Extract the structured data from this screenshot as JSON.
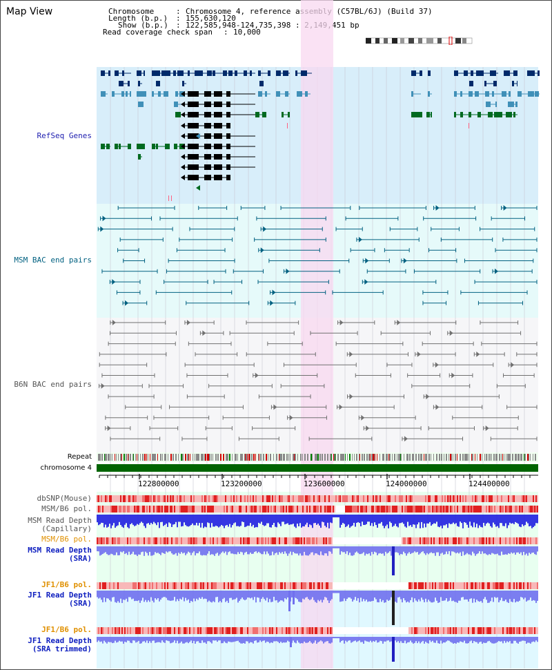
{
  "page": {
    "title": "Map View"
  },
  "header": {
    "chromosome_label": "Chromosome",
    "chromosome_value": "Chromosome 4, reference assembly (C57BL/6J) (Build 37)",
    "length_label": "Length (b.p.)",
    "length_value": "155,630,120",
    "show_label": "Show (b.p.)",
    "show_value": "122,585,948-124,735,398 : 2,149,451 bp",
    "span_label": "Read coverage check span",
    "span_value": "10,000"
  },
  "tracks": {
    "refseq": "RefSeq Genes",
    "msm_bac": "MSM BAC end pairs",
    "b6n_bac": "B6N BAC end pairs",
    "repeat": "Repeat",
    "chromosome": "chromosome 4",
    "dbsnp": "dbSNP(Mouse)",
    "msm_b6_pol": "MSM/B6 pol.",
    "msm_read_depth_cap": "MSM Read Depth\n(Capillary)",
    "msm_b6_pol2": "MSM/B6 pol.",
    "msm_read_depth_sra": "MSM Read Depth\n(SRA)",
    "jf1_b6_pol": "JF1/B6 pol.",
    "jf1_read_depth_sra": "JF1 Read Depth\n(SRA)",
    "jf1_b6_pol2": "JF1/B6 pol.",
    "jf1_read_depth_trim": "JF1 Read Depth\n(SRA trimmed)"
  },
  "axis": {
    "ticks": [
      "122800000",
      "123200000",
      "123600000",
      "124000000",
      "124400000"
    ]
  },
  "colors": {
    "highlight": "#f8d8f0",
    "refseq_bg": "#d8eefa",
    "msm_bg": "#e6fafa",
    "b6n_bg": "#f6f6f8",
    "chrom_bar": "#006400",
    "gene_dark": "#002a6a",
    "gene_teal": "#4090b8",
    "gene_green": "#006a20",
    "bac_blue": "#006080",
    "bac_gray": "#707070",
    "depth_blue": "#2020e0",
    "sra_blue": "#7070ee"
  }
}
